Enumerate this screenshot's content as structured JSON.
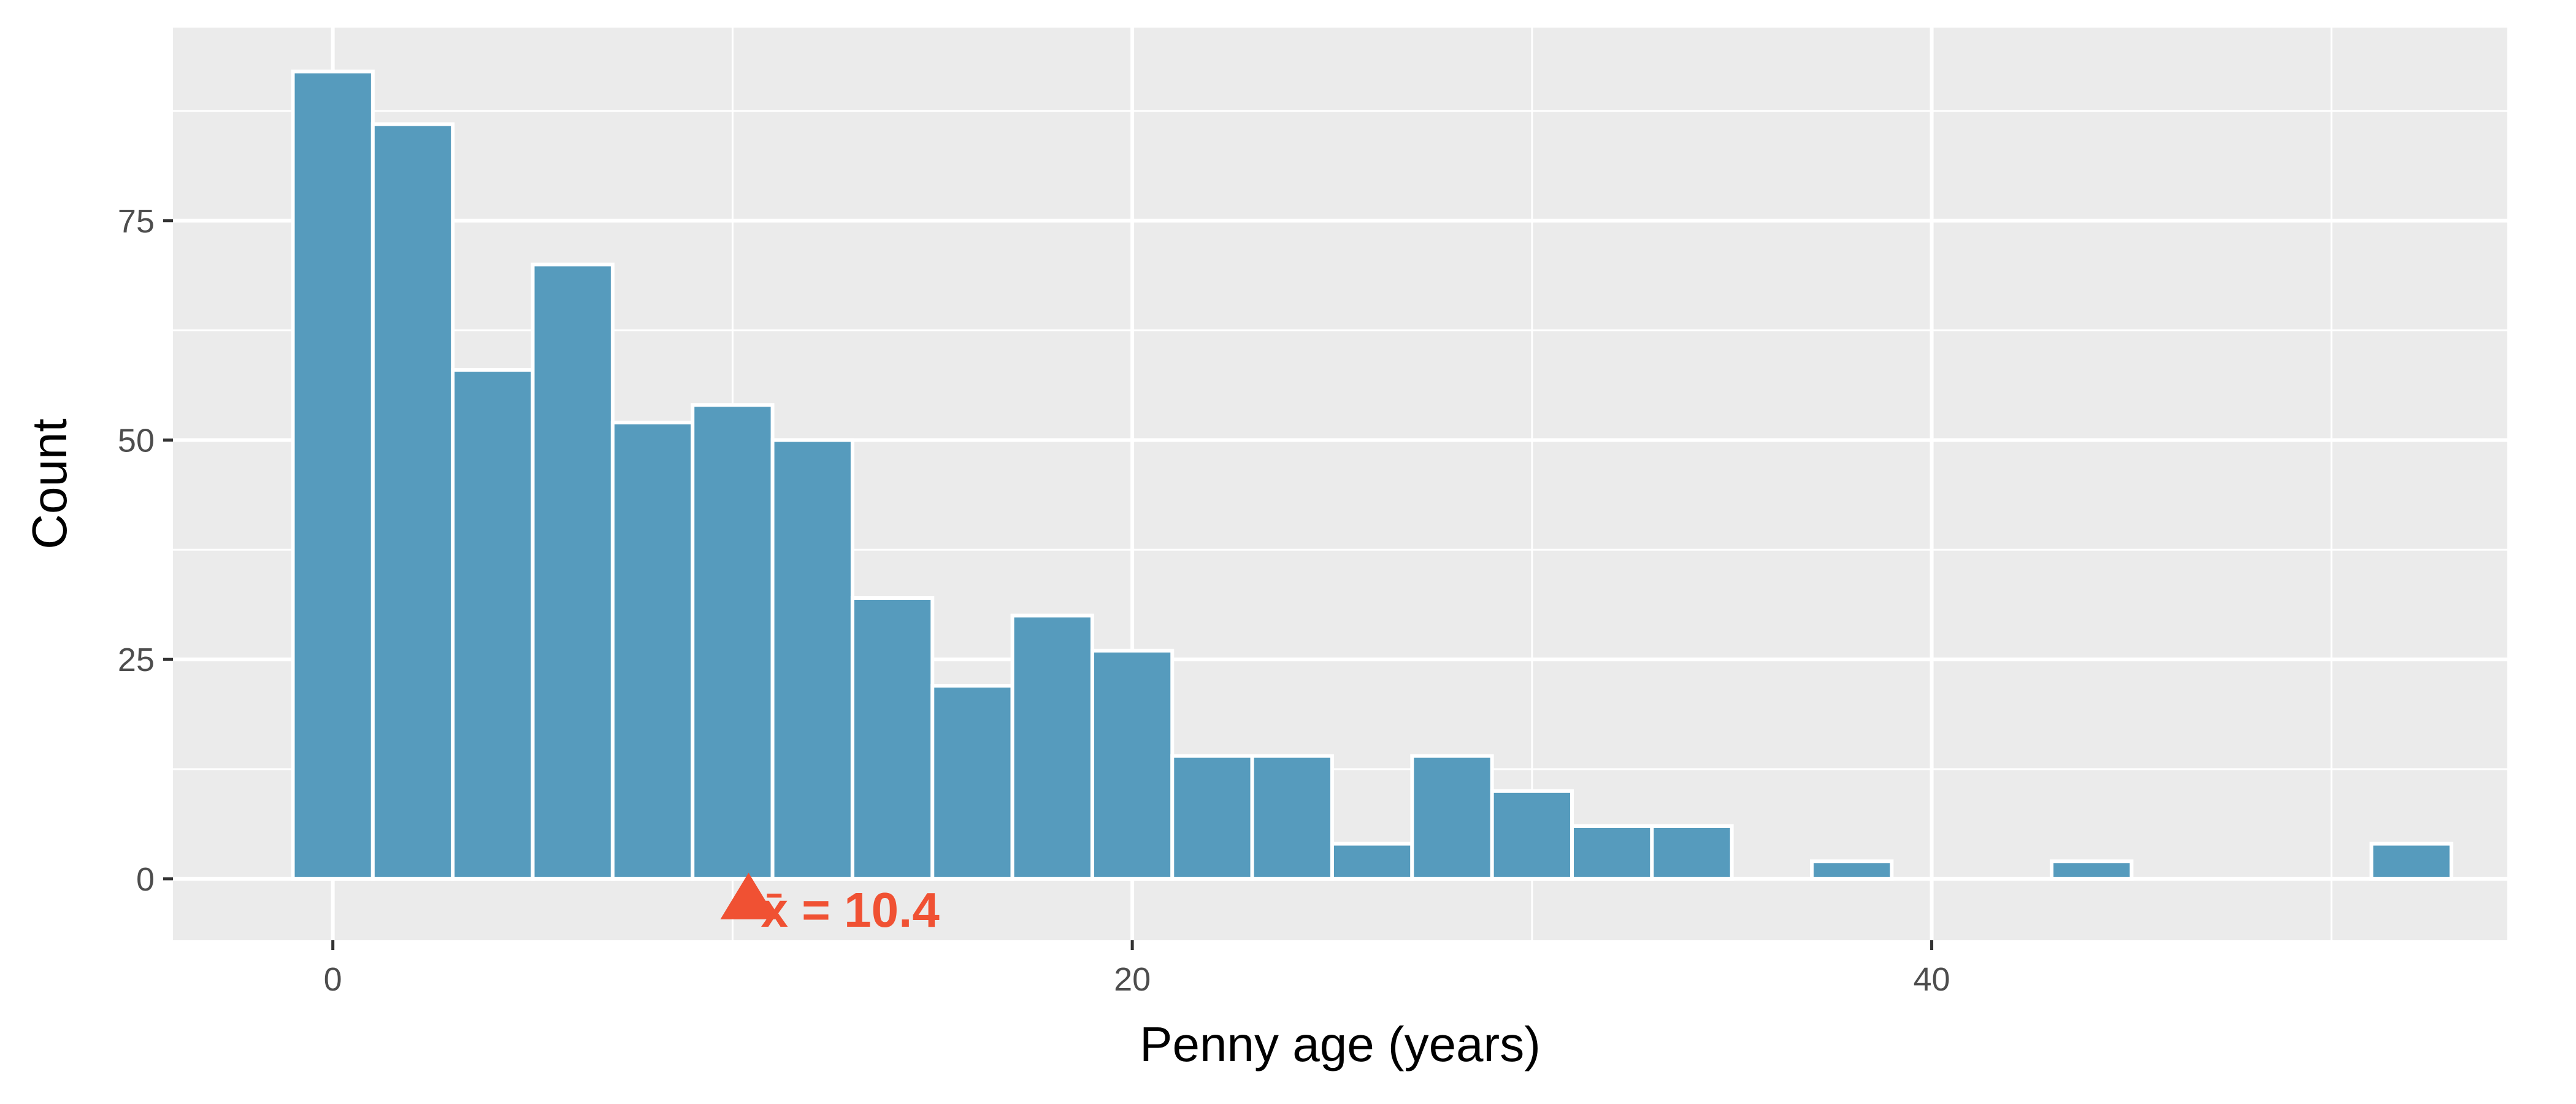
{
  "chart_data": {
    "type": "bar",
    "xlabel": "Penny age (years)",
    "ylabel": "Count",
    "bin_width": 2,
    "bins": [
      {
        "x_start": -1,
        "x_end": 1,
        "count": 92
      },
      {
        "x_start": 1,
        "x_end": 3,
        "count": 86
      },
      {
        "x_start": 3,
        "x_end": 5,
        "count": 58
      },
      {
        "x_start": 5,
        "x_end": 7,
        "count": 70
      },
      {
        "x_start": 7,
        "x_end": 9,
        "count": 52
      },
      {
        "x_start": 9,
        "x_end": 11,
        "count": 54
      },
      {
        "x_start": 11,
        "x_end": 13,
        "count": 50
      },
      {
        "x_start": 13,
        "x_end": 15,
        "count": 32
      },
      {
        "x_start": 15,
        "x_end": 17,
        "count": 22
      },
      {
        "x_start": 17,
        "x_end": 19,
        "count": 30
      },
      {
        "x_start": 19,
        "x_end": 21,
        "count": 26
      },
      {
        "x_start": 21,
        "x_end": 23,
        "count": 14
      },
      {
        "x_start": 23,
        "x_end": 25,
        "count": 14
      },
      {
        "x_start": 25,
        "x_end": 27,
        "count": 4
      },
      {
        "x_start": 27,
        "x_end": 29,
        "count": 14
      },
      {
        "x_start": 29,
        "x_end": 31,
        "count": 10
      },
      {
        "x_start": 31,
        "x_end": 33,
        "count": 6
      },
      {
        "x_start": 33,
        "x_end": 35,
        "count": 6
      },
      {
        "x_start": 37,
        "x_end": 39,
        "count": 2
      },
      {
        "x_start": 43,
        "x_end": 45,
        "count": 2
      },
      {
        "x_start": 51,
        "x_end": 53,
        "count": 4
      }
    ],
    "xlim": [
      -4,
      54.4
    ],
    "ylim": [
      -7,
      97
    ],
    "x_ticks": [
      0,
      20,
      40
    ],
    "x_tick_labels": [
      "0",
      "20",
      "40"
    ],
    "y_ticks": [
      0,
      25,
      50,
      75
    ],
    "y_tick_labels": [
      "0",
      "25",
      "50",
      "75"
    ],
    "grid": true,
    "bar_color": "#569BBD",
    "panel_color": "#EBEBEB",
    "mean_marker": {
      "x": 10.4,
      "label": "x̄ = 10.4",
      "color": "#F05133"
    }
  }
}
